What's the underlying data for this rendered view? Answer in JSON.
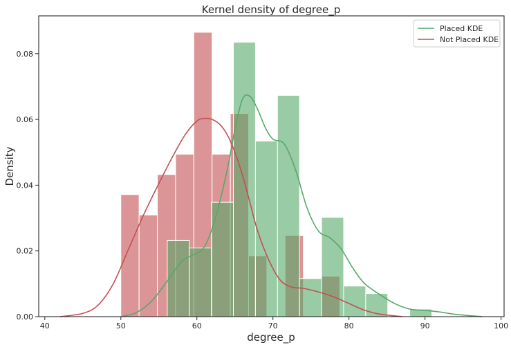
{
  "chart_data": {
    "type": "bar",
    "title": "Kernel density of degree_p",
    "xlabel": "degree_p",
    "ylabel": "Density",
    "xlim": [
      39.2,
      100.4
    ],
    "ylim": [
      0,
      0.0915
    ],
    "xticks": [
      40,
      50,
      60,
      70,
      80,
      90,
      100
    ],
    "xtick_labels": [
      "40",
      "50",
      "60",
      "70",
      "80",
      "90",
      "100"
    ],
    "yticks": [
      0.0,
      0.02,
      0.04,
      0.06,
      0.08
    ],
    "ytick_labels": [
      "0.00",
      "0.02",
      "0.04",
      "0.06",
      "0.08"
    ],
    "grid": false,
    "legend_position": "top-right",
    "series": [
      {
        "name": "Placed KDE",
        "color": "#55a868",
        "histogram": {
          "bin_edges": [
            56.1,
            59.0,
            61.9,
            64.8,
            67.7,
            70.6,
            73.5,
            76.4,
            79.3,
            82.2,
            85.1,
            88.0,
            90.9
          ],
          "densities": [
            0.0232,
            0.0209,
            0.0348,
            0.0835,
            0.0534,
            0.0673,
            0.0116,
            0.0302,
            0.0093,
            0.007,
            0.0,
            0.0023
          ]
        },
        "kde": {
          "x": [
            50.0,
            52.0,
            54.0,
            56.0,
            58.0,
            59.5,
            61.0,
            62.5,
            64.0,
            65.0,
            66.0,
            67.0,
            68.0,
            69.0,
            70.0,
            71.5,
            73.0,
            74.5,
            76.0,
            77.5,
            79.0,
            80.5,
            82.0,
            84.0,
            86.0,
            88.0,
            90.0,
            92.0,
            94.0,
            97.5
          ],
          "y": [
            0.0,
            0.0012,
            0.0046,
            0.0105,
            0.0168,
            0.0188,
            0.0213,
            0.0305,
            0.0448,
            0.057,
            0.0662,
            0.067,
            0.063,
            0.0575,
            0.054,
            0.0525,
            0.0445,
            0.033,
            0.026,
            0.024,
            0.0205,
            0.0148,
            0.0102,
            0.0068,
            0.004,
            0.0023,
            0.0019,
            0.0014,
            0.0007,
            0.0
          ]
        }
      },
      {
        "name": "Not Placed KDE",
        "color": "#c44e52",
        "histogram": {
          "bin_edges": [
            50.0,
            52.4,
            54.8,
            57.2,
            59.6,
            62.0,
            64.4,
            66.8,
            69.2,
            71.6,
            74.0,
            76.4,
            78.8
          ],
          "densities": [
            0.0371,
            0.0309,
            0.0432,
            0.0494,
            0.0865,
            0.0494,
            0.0618,
            0.0185,
            0.0,
            0.0247,
            0.0,
            0.0123
          ]
        },
        "kde": {
          "x": [
            42.0,
            45.0,
            47.0,
            49.0,
            51.0,
            53.0,
            55.0,
            57.0,
            58.5,
            60.0,
            61.0,
            62.0,
            63.0,
            64.0,
            65.0,
            66.0,
            67.0,
            68.0,
            69.5,
            71.0,
            72.5,
            74.0,
            76.0,
            78.0,
            80.0,
            82.0,
            84.0,
            87.0
          ],
          "y": [
            0.0,
            0.001,
            0.0035,
            0.01,
            0.0205,
            0.031,
            0.0405,
            0.0495,
            0.0555,
            0.0595,
            0.0603,
            0.06,
            0.0585,
            0.0553,
            0.05,
            0.043,
            0.0345,
            0.026,
            0.017,
            0.011,
            0.009,
            0.0086,
            0.0075,
            0.006,
            0.004,
            0.002,
            0.0008,
            0.0
          ]
        }
      }
    ]
  }
}
